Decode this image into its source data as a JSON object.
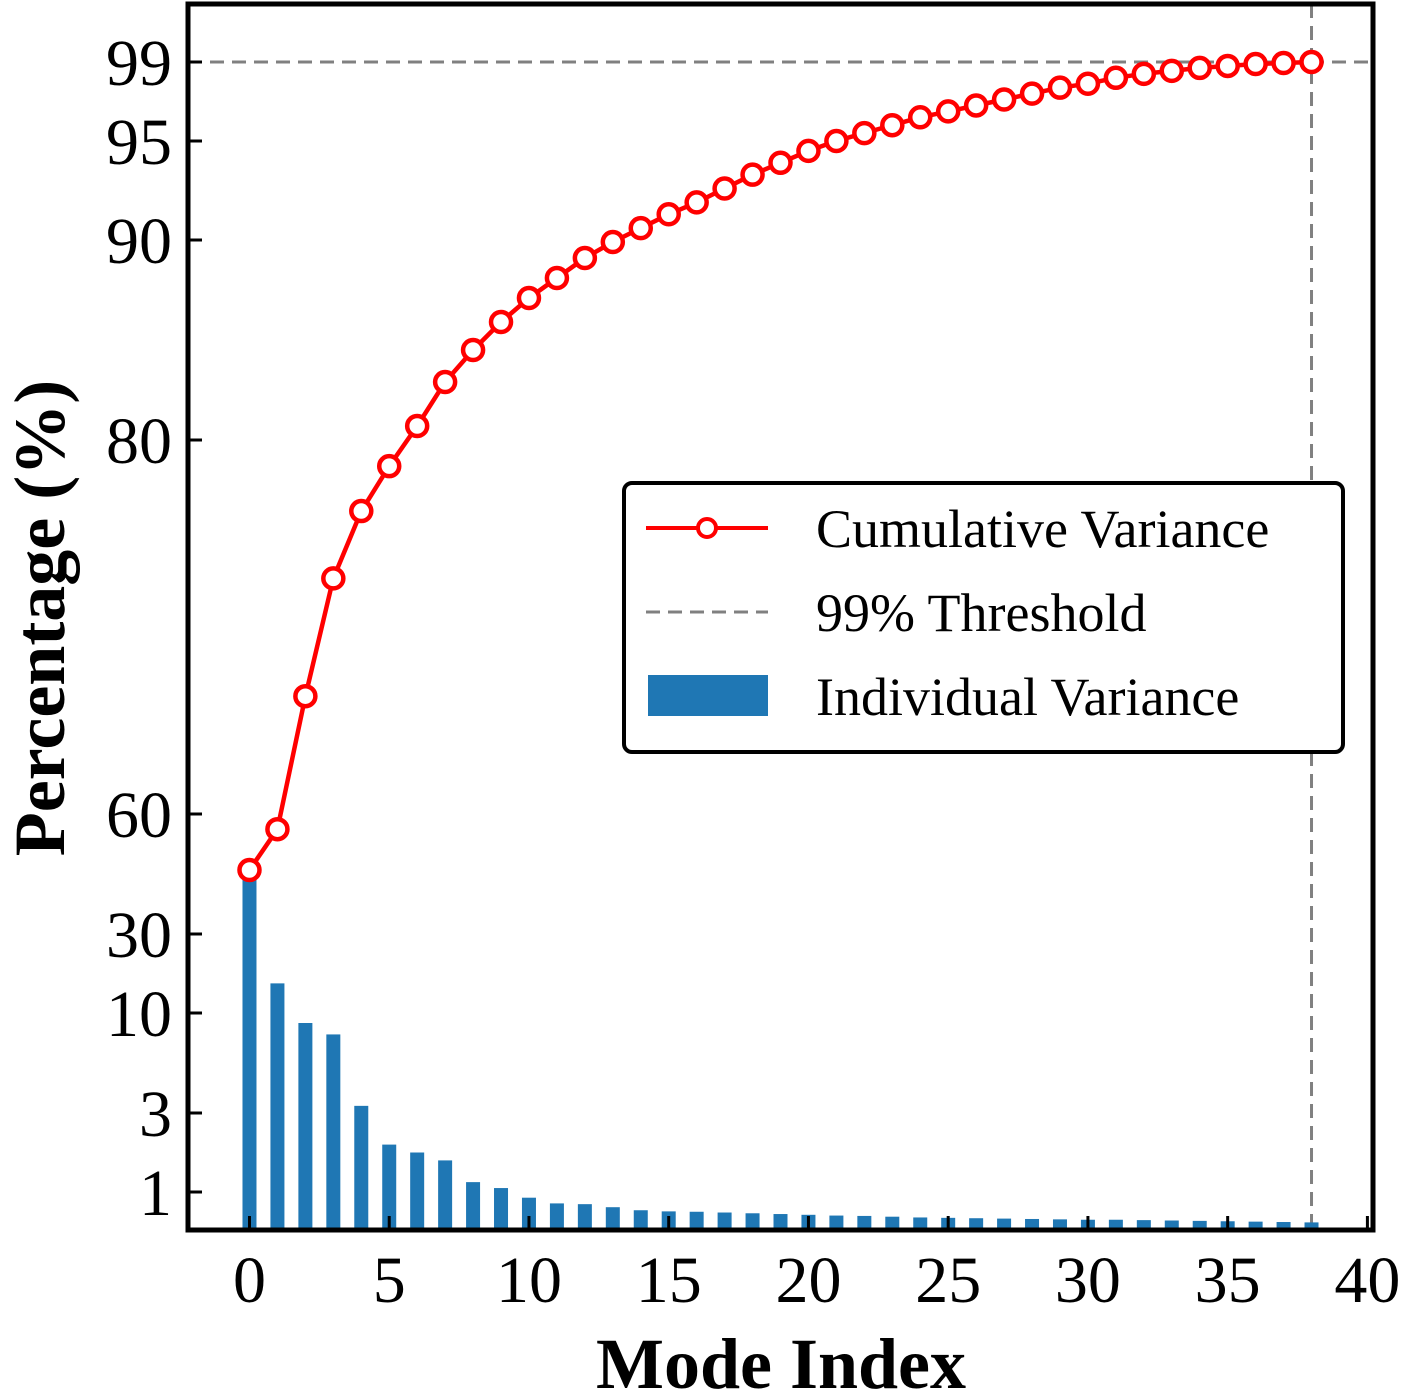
{
  "chart_data": {
    "type": "bar+line",
    "xlabel": "Mode Index",
    "ylabel": "Percentage (%)",
    "xlim": [
      -2.2,
      40.2
    ],
    "x_ticks": [
      0,
      5,
      10,
      15,
      20,
      25,
      30,
      35,
      40
    ],
    "x_tick_labels": [
      "0",
      "5",
      "10",
      "15",
      "20",
      "25",
      "30",
      "35",
      "40"
    ],
    "y_axis_note": "non-linear (piecewise-compressed) y scale",
    "y_ticks": [
      1,
      3,
      10,
      30,
      60,
      80,
      90,
      95,
      99
    ],
    "y_tick_labels": [
      "1",
      "3",
      "10",
      "30",
      "60",
      "80",
      "90",
      "95",
      "99"
    ],
    "threshold": {
      "value": 99,
      "mode_index": 38
    },
    "legend": {
      "position": "center-right",
      "entries": [
        "Cumulative Variance",
        "99% Threshold",
        "Individual Variance"
      ]
    },
    "colors": {
      "cumulative": "#ff0000",
      "individual": "#1f77b4",
      "threshold": "#808080"
    },
    "series": [
      {
        "name": "Cumulative Variance",
        "type": "line",
        "x": [
          0,
          1,
          2,
          3,
          4,
          5,
          6,
          7,
          8,
          9,
          10,
          11,
          12,
          13,
          14,
          15,
          16,
          17,
          18,
          19,
          20,
          21,
          22,
          23,
          24,
          25,
          26,
          27,
          28,
          29,
          30,
          31,
          32,
          33,
          34,
          35,
          36,
          37,
          38
        ],
        "values": [
          46.0,
          56.2,
          66.3,
          72.6,
          76.2,
          78.6,
          80.7,
          82.9,
          84.5,
          85.9,
          87.1,
          88.1,
          89.1,
          89.9,
          90.6,
          91.3,
          91.9,
          92.6,
          93.3,
          93.9,
          94.5,
          95.0,
          95.4,
          95.8,
          96.2,
          96.5,
          96.8,
          97.1,
          97.4,
          97.7,
          97.9,
          98.2,
          98.4,
          98.55,
          98.7,
          98.8,
          98.9,
          98.95,
          99.0
        ]
      },
      {
        "name": "Individual Variance",
        "type": "bar",
        "x": [
          0,
          1,
          2,
          3,
          4,
          5,
          6,
          7,
          8,
          9,
          10,
          11,
          12,
          13,
          14,
          15,
          16,
          17,
          18,
          19,
          20,
          21,
          22,
          23,
          24,
          25,
          26,
          27,
          28,
          29,
          30,
          31,
          32,
          33,
          34,
          35,
          36,
          37,
          38
        ],
        "values": [
          44,
          17.5,
          9.3,
          8.5,
          3.5,
          2.2,
          2.0,
          1.8,
          1.25,
          1.1,
          0.85,
          0.7,
          0.68,
          0.6,
          0.52,
          0.49,
          0.48,
          0.46,
          0.44,
          0.42,
          0.4,
          0.38,
          0.37,
          0.35,
          0.33,
          0.32,
          0.31,
          0.3,
          0.29,
          0.28,
          0.27,
          0.27,
          0.26,
          0.25,
          0.24,
          0.23,
          0.22,
          0.21,
          0.2
        ]
      }
    ]
  }
}
